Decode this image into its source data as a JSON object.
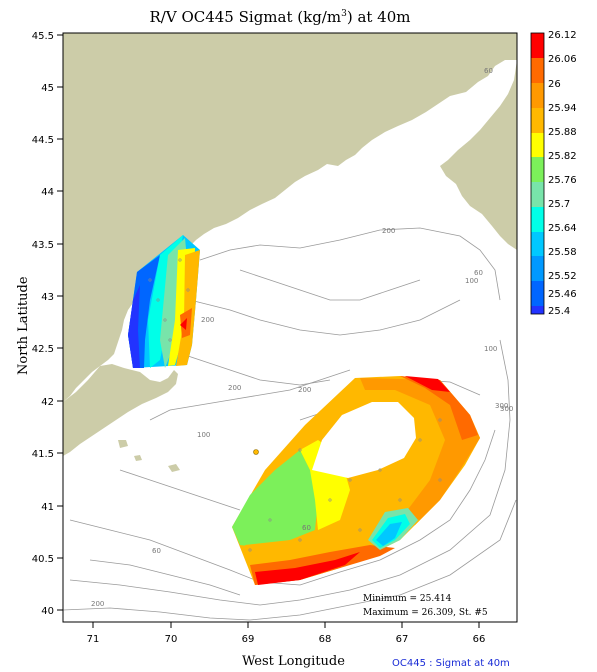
{
  "title": {
    "prefix": "R/V OC445 Sigmat (kg/m",
    "sup": "3",
    "suffix": ") at 40m"
  },
  "axes": {
    "ylabel": "North Latitude",
    "xlabel": "West Longitude",
    "y_ticks": [
      "45.5",
      "45",
      "44.5",
      "44",
      "43.5",
      "43",
      "42.5",
      "42",
      "41.5",
      "41",
      "40.5",
      "40"
    ],
    "x_ticks": [
      "71",
      "70",
      "69",
      "68",
      "67",
      "66"
    ]
  },
  "colorbar": {
    "labels": [
      "26.12",
      "26.06",
      "26",
      "25.94",
      "25.88",
      "25.82",
      "25.76",
      "25.7",
      "25.64",
      "25.58",
      "25.52",
      "25.46",
      "25.4"
    ],
    "colors": [
      "#ff0000",
      "#ff6a00",
      "#ff9900",
      "#ffb800",
      "#ffff00",
      "#7cf05a",
      "#78e4aa",
      "#00ffe8",
      "#00c8ff",
      "#0099ff",
      "#0066ff",
      "#2233ff"
    ]
  },
  "contour_labels": [
    "60",
    "200",
    "200",
    "100",
    "200",
    "60",
    "100",
    "100",
    "200",
    "300",
    "300",
    "60",
    "60",
    "200"
  ],
  "annotations": {
    "minimum": "Minimum = 25.414",
    "maximum": "Maximum = 26.309, St. #5"
  },
  "footer": "OC445 : Sigmat at 40m",
  "chart_data": {
    "type": "heatmap",
    "title": "R/V OC445 Sigmat (kg/m3) at 40m",
    "xlabel": "West Longitude",
    "ylabel": "North Latitude",
    "xlim": [
      71.3,
      65.5
    ],
    "ylim": [
      39.9,
      45.5
    ],
    "colorbar_range": [
      25.4,
      26.12
    ],
    "minimum": 25.414,
    "maximum": 26.309
  },
  "colors": {
    "land": "#cccca8",
    "water": "#ffffff",
    "isobath": "#9a9a9a"
  }
}
